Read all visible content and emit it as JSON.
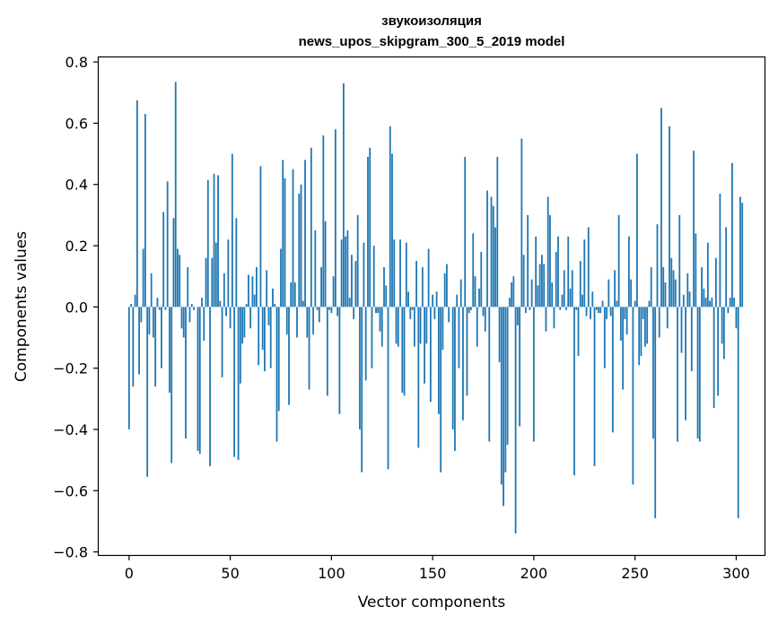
{
  "chart_data": {
    "type": "bar",
    "title_line1": "звукоизоляция",
    "title_line2": "news_upos_skipgram_300_5_2019 model",
    "xlabel": "Vector components",
    "ylabel": "Components values",
    "xlim": [
      -15,
      314
    ],
    "ylim": [
      -0.81,
      0.815
    ],
    "x_ticks": [
      0,
      50,
      100,
      150,
      200,
      250,
      300
    ],
    "x_tick_labels": [
      "0",
      "50",
      "100",
      "150",
      "200",
      "250",
      "300"
    ],
    "y_ticks": [
      0.8,
      0.6,
      0.4,
      0.2,
      0.0,
      -0.2,
      -0.4,
      -0.6,
      -0.8
    ],
    "y_tick_labels": [
      "0.8",
      "0.6",
      "0.4",
      "0.2",
      "0.0",
      "−0.2",
      "−0.4",
      "−0.6",
      "−0.8"
    ],
    "grid": false,
    "bar_color": "#1f77b4",
    "values": [
      -0.4,
      0.01,
      -0.26,
      0.04,
      0.675,
      -0.22,
      -0.05,
      0.19,
      0.63,
      -0.555,
      -0.09,
      0.11,
      -0.1,
      -0.26,
      0.03,
      -0.01,
      -0.2,
      0.31,
      -0.01,
      0.41,
      -0.28,
      -0.51,
      0.29,
      0.735,
      0.19,
      0.17,
      -0.07,
      -0.1,
      -0.43,
      0.13,
      -0.05,
      0.01,
      -0.01,
      0.0,
      -0.47,
      -0.48,
      0.03,
      -0.11,
      0.16,
      0.415,
      -0.52,
      0.16,
      0.435,
      0.21,
      0.43,
      0.02,
      -0.23,
      0.11,
      -0.03,
      0.22,
      -0.07,
      0.5,
      -0.49,
      0.29,
      -0.5,
      -0.25,
      -0.12,
      -0.1,
      0.01,
      0.105,
      -0.07,
      0.1,
      0.04,
      0.13,
      -0.19,
      0.46,
      -0.14,
      -0.21,
      0.12,
      -0.06,
      -0.2,
      0.06,
      0.01,
      -0.44,
      -0.34,
      0.19,
      0.48,
      0.42,
      -0.09,
      -0.32,
      0.08,
      0.45,
      0.08,
      -0.1,
      0.37,
      0.4,
      0.02,
      0.48,
      -0.1,
      -0.27,
      0.52,
      -0.09,
      0.25,
      -0.01,
      -0.05,
      0.13,
      0.56,
      0.28,
      -0.29,
      -0.01,
      -0.02,
      0.1,
      0.58,
      -0.03,
      -0.35,
      0.22,
      0.73,
      0.23,
      0.25,
      0.03,
      0.17,
      -0.04,
      0.15,
      0.3,
      -0.4,
      -0.54,
      0.21,
      -0.24,
      0.49,
      0.52,
      -0.2,
      0.2,
      -0.02,
      -0.02,
      -0.08,
      -0.13,
      0.13,
      0.07,
      -0.53,
      0.59,
      0.5,
      0.22,
      -0.12,
      -0.13,
      0.22,
      -0.28,
      -0.29,
      0.21,
      0.05,
      -0.04,
      -0.01,
      -0.13,
      0.15,
      -0.46,
      -0.12,
      0.13,
      -0.25,
      -0.12,
      0.19,
      -0.31,
      0.04,
      -0.04,
      0.05,
      -0.35,
      -0.54,
      -0.14,
      0.11,
      0.14,
      -0.05,
      0.0,
      -0.4,
      -0.47,
      0.04,
      -0.2,
      0.09,
      -0.37,
      0.49,
      -0.29,
      -0.02,
      -0.01,
      0.24,
      0.1,
      -0.13,
      0.06,
      0.18,
      -0.03,
      -0.08,
      0.38,
      -0.44,
      0.36,
      0.33,
      0.26,
      0.49,
      -0.18,
      -0.58,
      -0.65,
      -0.54,
      -0.45,
      0.03,
      0.08,
      0.1,
      -0.74,
      -0.06,
      -0.39,
      0.55,
      0.17,
      -0.02,
      0.3,
      -0.01,
      0.09,
      -0.44,
      0.23,
      0.07,
      0.14,
      0.17,
      0.14,
      -0.08,
      0.36,
      0.3,
      0.08,
      -0.07,
      0.18,
      0.23,
      -0.01,
      0.04,
      0.12,
      -0.01,
      0.23,
      0.06,
      0.12,
      -0.55,
      -0.01,
      -0.16,
      0.15,
      0.04,
      0.22,
      -0.03,
      0.26,
      -0.04,
      0.05,
      -0.52,
      -0.01,
      -0.02,
      -0.02,
      0.02,
      -0.2,
      -0.04,
      0.09,
      -0.03,
      -0.41,
      0.12,
      0.02,
      0.3,
      -0.11,
      -0.27,
      -0.04,
      -0.09,
      0.23,
      0.09,
      -0.58,
      0.02,
      0.5,
      -0.19,
      -0.16,
      -0.04,
      -0.13,
      -0.12,
      0.02,
      0.13,
      -0.43,
      -0.69,
      0.27,
      -0.1,
      0.65,
      0.13,
      0.08,
      -0.07,
      0.59,
      0.16,
      0.12,
      0.09,
      -0.44,
      0.3,
      -0.15,
      0.04,
      -0.37,
      0.11,
      0.05,
      -0.21,
      0.51,
      0.24,
      -0.43,
      -0.44,
      0.13,
      0.06,
      0.03,
      0.21,
      0.02,
      0.03,
      -0.33,
      0.16,
      -0.29,
      0.37,
      -0.12,
      -0.17,
      0.26,
      -0.02,
      0.03,
      0.47,
      0.03,
      -0.07,
      -0.69,
      0.36,
      0.34
    ]
  }
}
